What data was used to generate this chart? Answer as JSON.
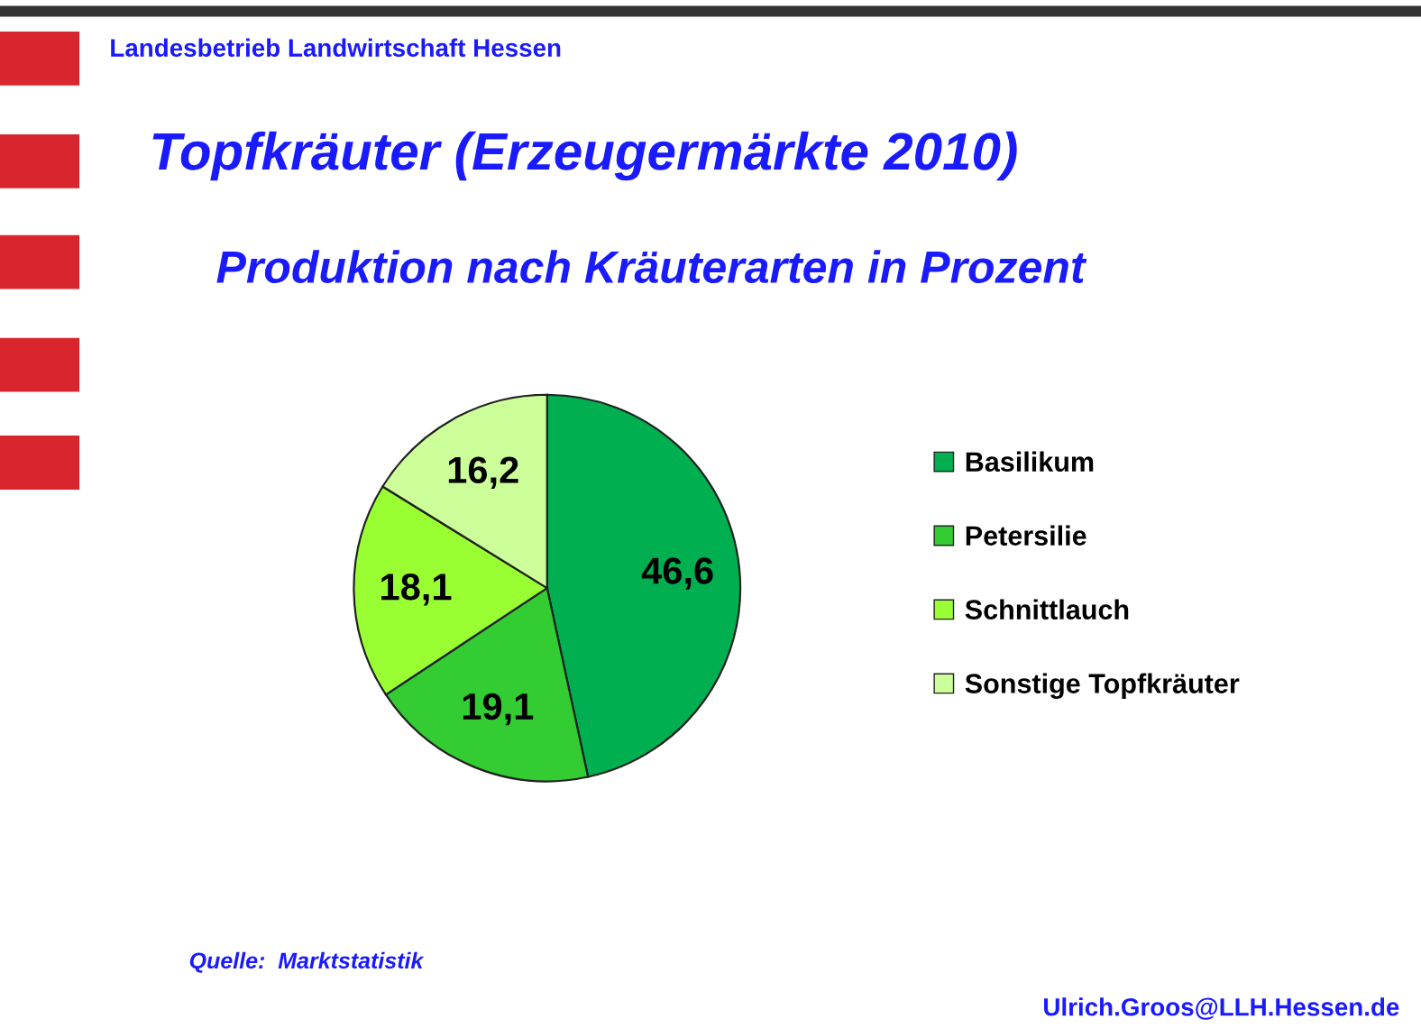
{
  "chart_data": {
    "type": "pie",
    "title": "Topfkräuter (Erzeugermärkte 2010)",
    "subtitle": "Produktion nach Kräuterarten in Prozent",
    "categories": [
      "Basilikum",
      "Petersilie",
      "Schnittlauch",
      "Sonstige Topfkräuter"
    ],
    "values": [
      46.6,
      19.1,
      18.1,
      16.2
    ],
    "value_labels": [
      "46,6",
      "19,1",
      "18,1",
      "16,2"
    ],
    "colors": [
      "#00b050",
      "#33cc33",
      "#99ff33",
      "#ccff99"
    ],
    "legend": "right",
    "annotations": [
      "Landesbetrieb Landwirtschaft Hessen",
      "Quelle:  Marktstatistik",
      "Ulrich.Groos@LLH.Hessen.de"
    ]
  }
}
